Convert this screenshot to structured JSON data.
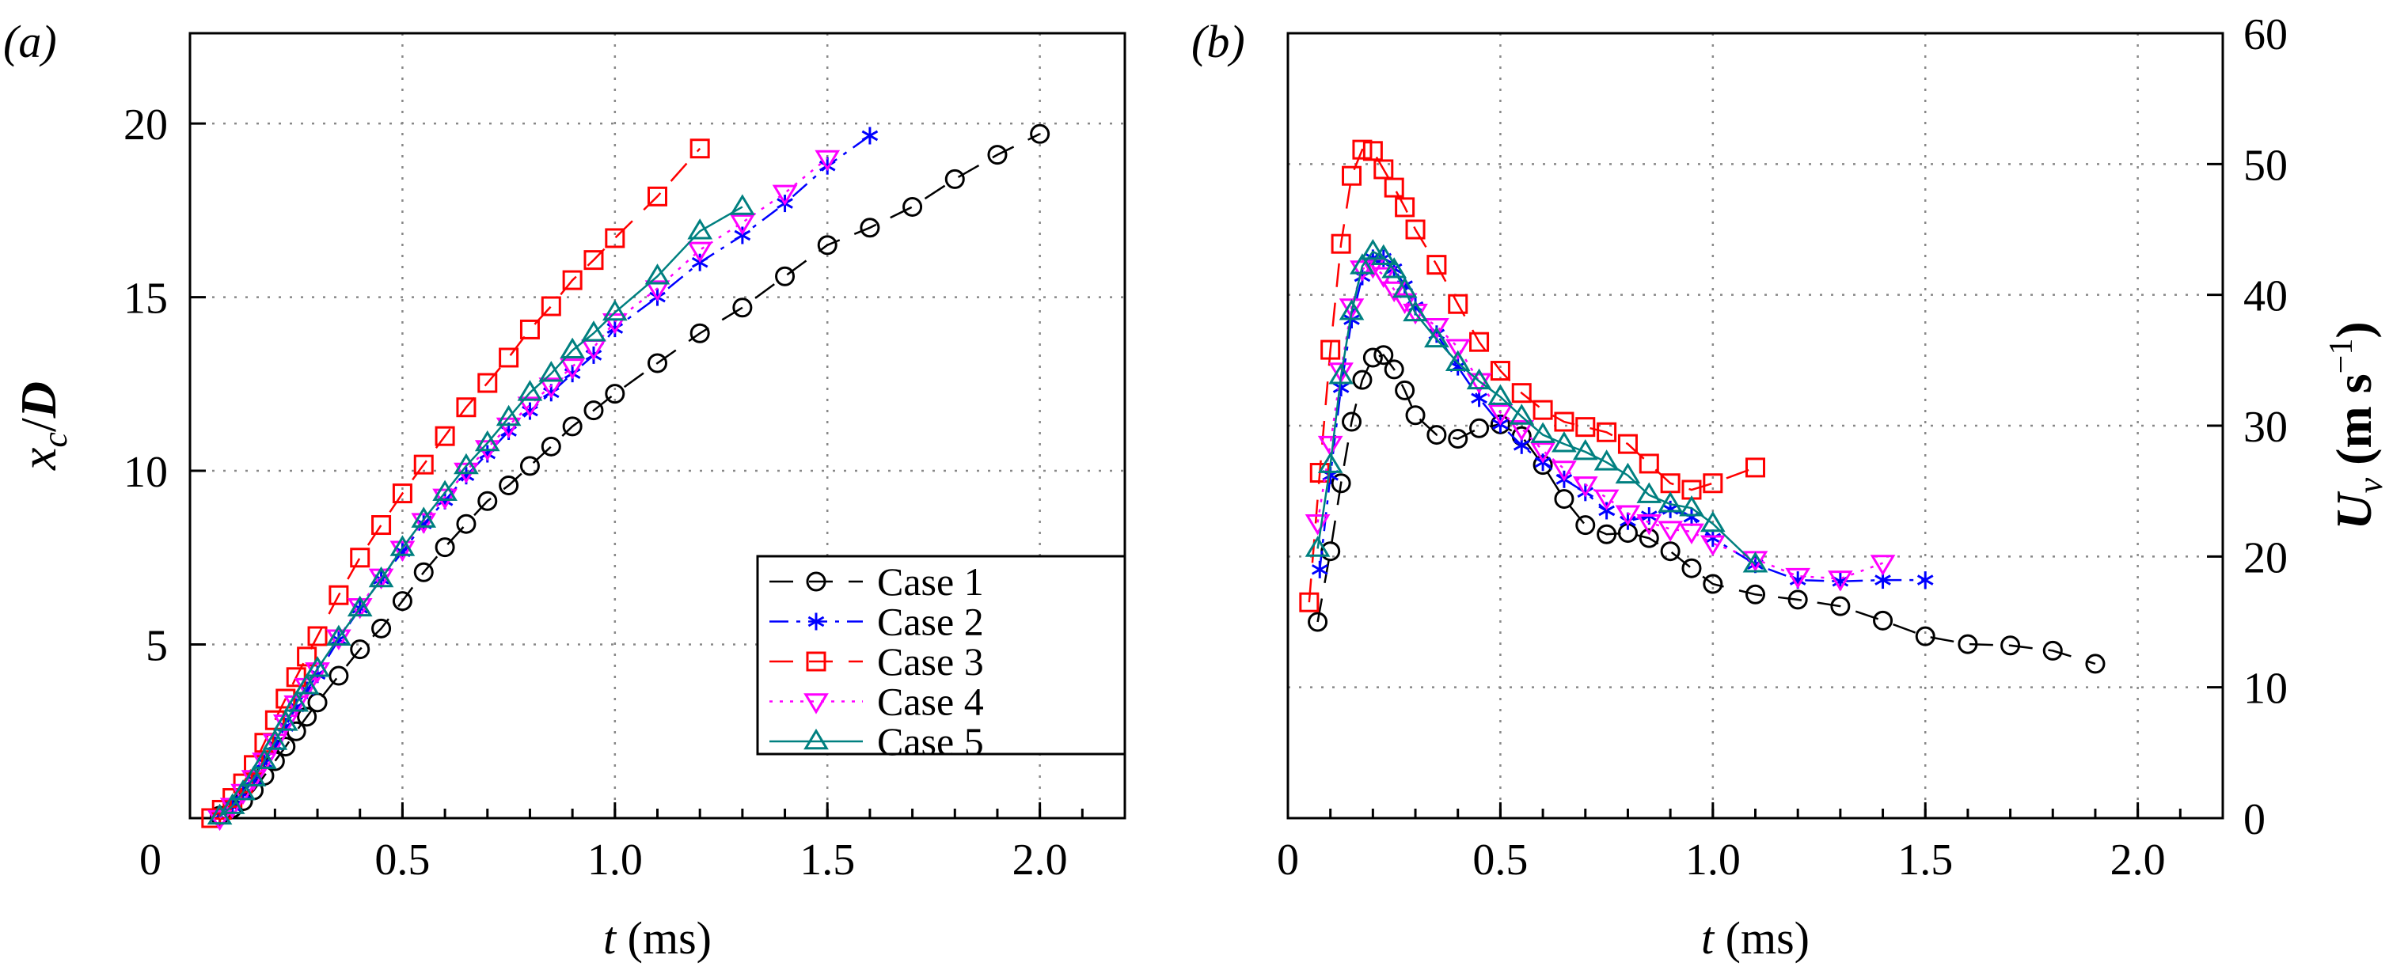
{
  "chart_data": [
    {
      "type": "line",
      "panel_label": "(a)",
      "xlabel": {
        "var": "t",
        "unit": " (ms)"
      },
      "ylabel": {
        "main": "x",
        "sub": "c",
        "slash": "/",
        "den": "D"
      },
      "xlim": [
        0,
        2.2
      ],
      "ylim": [
        0,
        22.6
      ],
      "xticks": [
        0,
        0.5,
        1.0,
        1.5,
        2.0
      ],
      "xtick_labels": [
        "0",
        "0.5",
        "1.0",
        "1.5",
        "2.0"
      ],
      "yticks": [
        5,
        10,
        15,
        20
      ],
      "ytick_labels": [
        "5",
        "10",
        "15",
        "20"
      ],
      "grid": true,
      "legend": "bottom-right",
      "series": [
        {
          "name": "Case 1",
          "color": "#000000",
          "marker": "circle",
          "line": "dashed",
          "x": [
            0.07,
            0.1,
            0.125,
            0.15,
            0.175,
            0.2,
            0.225,
            0.25,
            0.275,
            0.3,
            0.35,
            0.4,
            0.45,
            0.5,
            0.55,
            0.6,
            0.65,
            0.7,
            0.75,
            0.8,
            0.85,
            0.9,
            0.95,
            1.0,
            1.1,
            1.2,
            1.3,
            1.4,
            1.5,
            1.6,
            1.7,
            1.8,
            1.9,
            2.0
          ],
          "y": [
            0.07,
            0.28,
            0.49,
            0.8,
            1.22,
            1.64,
            2.06,
            2.5,
            2.92,
            3.33,
            4.1,
            4.86,
            5.46,
            6.25,
            7.08,
            7.8,
            8.47,
            9.13,
            9.58,
            10.14,
            10.7,
            11.28,
            11.74,
            12.22,
            13.1,
            13.96,
            14.7,
            15.6,
            16.5,
            17.0,
            17.6,
            18.4,
            19.1,
            19.7
          ]
        },
        {
          "name": "Case 2",
          "color": "#0000ff",
          "marker": "star",
          "line": "dash-dot",
          "x": [
            0.07,
            0.1,
            0.125,
            0.15,
            0.175,
            0.2,
            0.225,
            0.25,
            0.275,
            0.3,
            0.35,
            0.4,
            0.45,
            0.5,
            0.55,
            0.6,
            0.65,
            0.7,
            0.75,
            0.8,
            0.85,
            0.9,
            0.95,
            1.0,
            1.1,
            1.2,
            1.3,
            1.4,
            1.5,
            1.6
          ],
          "y": [
            0.07,
            0.35,
            0.7,
            1.1,
            1.6,
            2.1,
            2.64,
            3.2,
            3.68,
            4.14,
            5.14,
            6.04,
            6.88,
            7.67,
            8.47,
            9.14,
            9.86,
            10.49,
            11.14,
            11.72,
            12.25,
            12.8,
            13.33,
            14.1,
            15.0,
            16.0,
            16.78,
            17.7,
            18.78,
            19.65
          ]
        },
        {
          "name": "Case 3",
          "color": "#ff0000",
          "marker": "square",
          "line": "dashed",
          "x": [
            0.05,
            0.075,
            0.1,
            0.125,
            0.15,
            0.175,
            0.2,
            0.225,
            0.25,
            0.275,
            0.3,
            0.35,
            0.4,
            0.45,
            0.5,
            0.55,
            0.6,
            0.65,
            0.7,
            0.75,
            0.8,
            0.85,
            0.9,
            0.95,
            1.0,
            1.1,
            1.2
          ],
          "y": [
            0,
            0.24,
            0.58,
            1.0,
            1.53,
            2.17,
            2.82,
            3.44,
            4.06,
            4.65,
            5.24,
            6.42,
            7.5,
            8.44,
            9.35,
            10.18,
            11.0,
            11.83,
            12.53,
            13.26,
            14.07,
            14.74,
            15.49,
            16.07,
            16.7,
            17.9,
            19.28
          ]
        },
        {
          "name": "Case 4",
          "color": "#ff00ff",
          "marker": "triangle-down",
          "line": "dotted",
          "x": [
            0.07,
            0.1,
            0.125,
            0.15,
            0.175,
            0.2,
            0.225,
            0.25,
            0.275,
            0.3,
            0.35,
            0.4,
            0.45,
            0.5,
            0.55,
            0.6,
            0.65,
            0.7,
            0.75,
            0.8,
            0.85,
            0.9,
            0.95,
            1.0,
            1.1,
            1.2,
            1.3,
            1.4,
            1.5
          ],
          "y": [
            0.0,
            0.35,
            0.75,
            1.15,
            1.65,
            2.2,
            2.75,
            3.3,
            3.8,
            4.25,
            5.2,
            6.1,
            6.95,
            7.75,
            8.55,
            9.25,
            10.0,
            10.65,
            11.3,
            11.9,
            12.45,
            13.0,
            13.55,
            14.3,
            15.25,
            16.36,
            17.15,
            18.0,
            19.0
          ]
        },
        {
          "name": "Case 5",
          "color": "#008080",
          "marker": "triangle-up",
          "line": "solid",
          "x": [
            0.07,
            0.1,
            0.125,
            0.15,
            0.175,
            0.2,
            0.225,
            0.25,
            0.275,
            0.3,
            0.35,
            0.4,
            0.45,
            0.5,
            0.55,
            0.6,
            0.65,
            0.7,
            0.75,
            0.8,
            0.85,
            0.9,
            0.95,
            1.0,
            1.1,
            1.2,
            1.3
          ],
          "y": [
            0.05,
            0.35,
            0.75,
            1.15,
            1.65,
            2.2,
            2.75,
            3.3,
            3.8,
            4.3,
            5.2,
            6.04,
            6.88,
            7.78,
            8.6,
            9.37,
            10.14,
            10.8,
            11.53,
            12.25,
            12.8,
            13.47,
            13.96,
            14.56,
            15.6,
            16.9,
            17.6
          ]
        }
      ]
    },
    {
      "type": "line",
      "panel_label": "(b)",
      "xlabel": {
        "var": "t",
        "unit": " (ms)"
      },
      "ylabel": {
        "main": "U",
        "sub": "v",
        "unit_open": " (m s",
        "exp": "−1",
        "unit_close": ")"
      },
      "y_axis_side": "right",
      "xlim": [
        0,
        2.2
      ],
      "ylim": [
        0,
        60
      ],
      "xticks": [
        0,
        0.5,
        1.0,
        1.5,
        2.0
      ],
      "xtick_labels": [
        "0",
        "0.5",
        "1.0",
        "1.5",
        "2.0"
      ],
      "yticks": [
        0,
        10,
        20,
        30,
        40,
        50,
        60
      ],
      "ytick_labels": [
        "0",
        "10",
        "20",
        "30",
        "40",
        "50",
        "60"
      ],
      "grid": true,
      "series": [
        {
          "name": "Case 1",
          "color": "#000000",
          "marker": "circle",
          "line": "dashed",
          "x": [
            0.07,
            0.1,
            0.125,
            0.15,
            0.175,
            0.2,
            0.225,
            0.25,
            0.275,
            0.3,
            0.35,
            0.4,
            0.45,
            0.5,
            0.55,
            0.6,
            0.65,
            0.7,
            0.75,
            0.8,
            0.85,
            0.9,
            0.95,
            1.0,
            1.1,
            1.2,
            1.3,
            1.4,
            1.5,
            1.6,
            1.7,
            1.8,
            1.9
          ],
          "y": [
            15.0,
            20.4,
            25.6,
            30.3,
            33.5,
            35.2,
            35.4,
            34.3,
            32.7,
            30.8,
            29.3,
            29.0,
            29.8,
            30.1,
            29.2,
            27.0,
            24.4,
            22.4,
            21.7,
            21.8,
            21.4,
            20.4,
            19.1,
            17.9,
            17.1,
            16.7,
            16.2,
            15.1,
            13.9,
            13.3,
            13.2,
            12.8,
            11.8
          ]
        },
        {
          "name": "Case 2",
          "color": "#0000ff",
          "marker": "star",
          "line": "dash-dot",
          "x": [
            0.075,
            0.1,
            0.125,
            0.15,
            0.175,
            0.2,
            0.225,
            0.25,
            0.275,
            0.3,
            0.35,
            0.4,
            0.45,
            0.5,
            0.55,
            0.6,
            0.65,
            0.7,
            0.75,
            0.8,
            0.85,
            0.9,
            0.95,
            1.0,
            1.1,
            1.2,
            1.3,
            1.4,
            1.5
          ],
          "y": [
            19.0,
            26.2,
            32.9,
            38.1,
            41.4,
            42.8,
            42.8,
            42.0,
            40.7,
            39.1,
            37.0,
            34.5,
            32.1,
            30.1,
            28.5,
            27.2,
            25.9,
            24.9,
            23.5,
            22.7,
            23.1,
            23.6,
            23.0,
            21.4,
            19.4,
            18.2,
            18.1,
            18.2,
            18.2
          ]
        },
        {
          "name": "Case 3",
          "color": "#ff0000",
          "marker": "square",
          "line": "dashed",
          "x": [
            0.05,
            0.075,
            0.1,
            0.125,
            0.15,
            0.175,
            0.2,
            0.225,
            0.25,
            0.275,
            0.3,
            0.35,
            0.4,
            0.45,
            0.5,
            0.55,
            0.6,
            0.65,
            0.7,
            0.75,
            0.8,
            0.85,
            0.9,
            0.95,
            1.0,
            1.1
          ],
          "y": [
            16.5,
            26.4,
            35.8,
            43.9,
            49.1,
            51.1,
            51.0,
            49.6,
            48.2,
            46.7,
            45.0,
            42.3,
            39.3,
            36.4,
            34.2,
            32.5,
            31.2,
            30.3,
            29.9,
            29.5,
            28.6,
            27.1,
            25.6,
            25.1,
            25.6,
            26.8
          ]
        },
        {
          "name": "Case 4",
          "color": "#ff00ff",
          "marker": "triangle-down",
          "line": "dotted",
          "x": [
            0.07,
            0.1,
            0.125,
            0.15,
            0.175,
            0.2,
            0.225,
            0.25,
            0.275,
            0.3,
            0.35,
            0.4,
            0.45,
            0.5,
            0.55,
            0.6,
            0.65,
            0.7,
            0.75,
            0.8,
            0.85,
            0.9,
            0.95,
            1.0,
            1.1,
            1.2,
            1.3,
            1.4
          ],
          "y": [
            22.6,
            28.6,
            34.2,
            39.1,
            42.0,
            42.2,
            41.5,
            40.4,
            39.5,
            38.7,
            37.6,
            36.0,
            33.4,
            31.0,
            29.8,
            28.1,
            26.7,
            25.5,
            24.5,
            23.3,
            22.6,
            22.1,
            21.9,
            21.0,
            19.8,
            18.5,
            18.3,
            19.5
          ]
        },
        {
          "name": "Case 5",
          "color": "#008080",
          "marker": "triangle-up",
          "line": "solid",
          "x": [
            0.07,
            0.1,
            0.125,
            0.15,
            0.175,
            0.2,
            0.225,
            0.25,
            0.275,
            0.3,
            0.35,
            0.4,
            0.45,
            0.5,
            0.55,
            0.6,
            0.65,
            0.7,
            0.75,
            0.8,
            0.85,
            0.9,
            0.95,
            1.0,
            1.1
          ],
          "y": [
            20.6,
            27.0,
            33.8,
            38.7,
            42.2,
            43.3,
            42.9,
            41.9,
            40.4,
            38.6,
            36.6,
            34.8,
            33.4,
            32.2,
            30.7,
            29.3,
            28.6,
            28.0,
            27.2,
            26.2,
            24.7,
            24.0,
            23.7,
            22.5,
            19.4
          ]
        }
      ]
    }
  ]
}
